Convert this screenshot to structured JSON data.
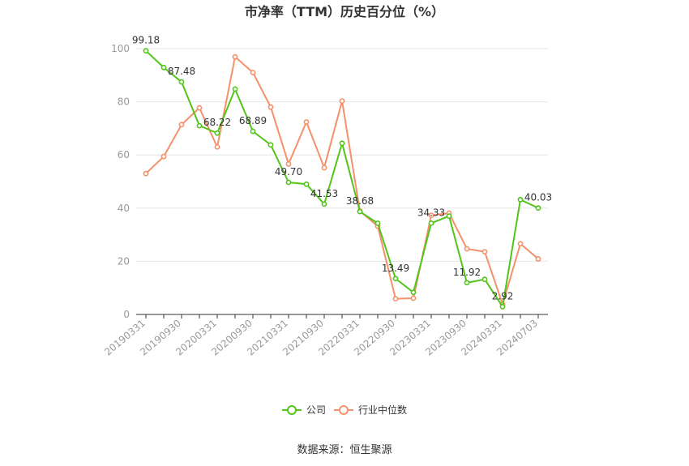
{
  "chart_data": {
    "type": "line",
    "title": "市净率（TTM）历史百分位（%）",
    "source": "数据来源：恒生聚源",
    "ylim": [
      0,
      100
    ],
    "yticks": [
      0,
      20,
      40,
      60,
      80,
      100
    ],
    "x_tick_labels": [
      "20190331",
      "20190930",
      "20200331",
      "20200930",
      "20210331",
      "20210930",
      "20220331",
      "20220930",
      "20230331",
      "20230930",
      "20240331",
      "20240703"
    ],
    "x": [
      "20190331",
      "20190630",
      "20190930",
      "20191231",
      "20200331",
      "20200630",
      "20200930",
      "20201231",
      "20210331",
      "20210630",
      "20210930",
      "20211231",
      "20220331",
      "20220630",
      "20220930",
      "20221231",
      "20230331",
      "20230630",
      "20230930",
      "20231231",
      "20240331",
      "20240630",
      "20240703"
    ],
    "grid": true,
    "legend_position": "bottom",
    "series": [
      {
        "name": "公司",
        "color": "#52c41a",
        "values": [
          99.18,
          92.9,
          87.48,
          71.0,
          68.22,
          84.8,
          68.89,
          63.8,
          49.7,
          49.0,
          41.53,
          64.4,
          38.68,
          34.3,
          13.49,
          8.3,
          34.33,
          37.0,
          11.92,
          13.2,
          2.92,
          43.2,
          40.03
        ],
        "labels": {
          "0": "99.18",
          "2": "87.48",
          "4": "68.22",
          "6": "68.89",
          "8": "49.70",
          "10": "41.53",
          "12": "38.68",
          "14": "13.49",
          "16": "34.33",
          "18": "11.92",
          "20": "2.92",
          "22": "40.03"
        }
      },
      {
        "name": "行业中位数",
        "color": "#f4916b",
        "values": [
          53.0,
          59.4,
          71.4,
          77.7,
          63.0,
          96.9,
          91.0,
          78.0,
          56.6,
          72.4,
          55.2,
          80.3,
          38.9,
          33.2,
          5.9,
          6.1,
          37.3,
          38.1,
          24.7,
          23.6,
          3.8,
          26.6,
          20.9
        ]
      }
    ]
  }
}
